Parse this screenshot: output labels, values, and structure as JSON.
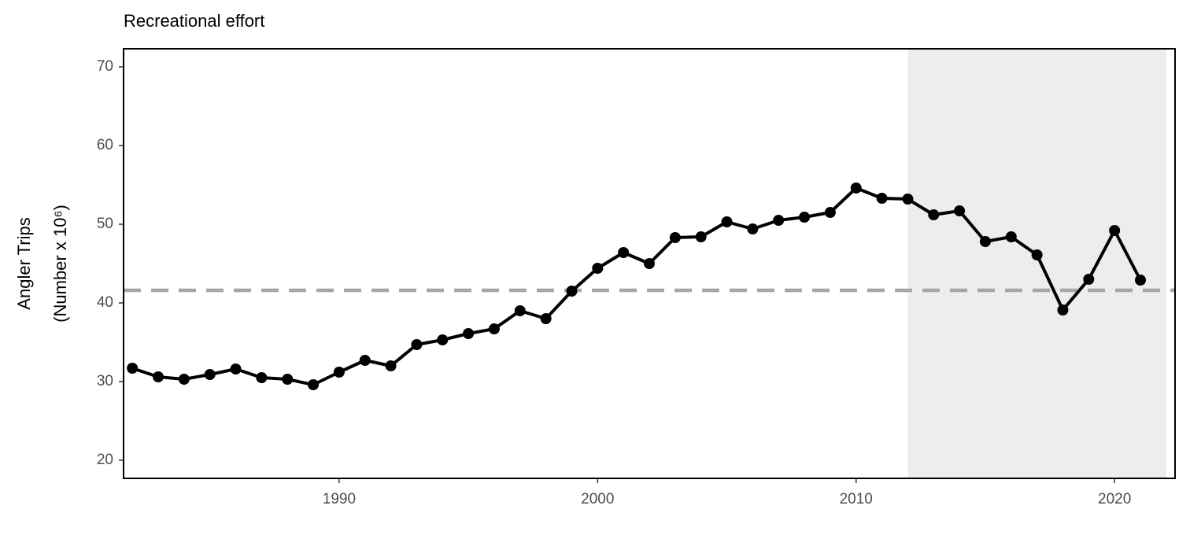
{
  "chart_data": {
    "type": "line",
    "title": "Recreational effort",
    "ylabel": [
      "Angler Trips",
      "(Number x 10⁶)"
    ],
    "x": [
      1982,
      1983,
      1984,
      1985,
      1986,
      1987,
      1988,
      1989,
      1990,
      1991,
      1992,
      1993,
      1994,
      1995,
      1996,
      1997,
      1998,
      1999,
      2000,
      2001,
      2002,
      2003,
      2004,
      2005,
      2006,
      2007,
      2008,
      2009,
      2010,
      2011,
      2012,
      2013,
      2014,
      2015,
      2016,
      2017,
      2018,
      2019,
      2020,
      2021
    ],
    "series": [
      {
        "color": "#000000",
        "values": [
          31.7,
          30.6,
          30.3,
          30.9,
          31.6,
          30.5,
          30.3,
          29.6,
          31.2,
          32.7,
          32.0,
          34.7,
          35.3,
          36.1,
          36.7,
          39.0,
          38.0,
          41.5,
          44.4,
          46.4,
          45.0,
          48.3,
          48.4,
          50.3,
          49.4,
          50.5,
          50.9,
          51.5,
          54.6,
          53.3,
          53.2,
          51.2,
          51.7,
          47.8,
          48.4,
          46.1,
          39.1,
          43.0,
          49.2,
          42.9
        ]
      }
    ],
    "xlim": [
      1981.66,
      2022.34
    ],
    "ylim": [
      17.7,
      72.3
    ],
    "xticks": [
      1990,
      2000,
      2010,
      2020
    ],
    "yticks": [
      20,
      30,
      40,
      50,
      60,
      70
    ],
    "shaded_range": [
      2012,
      2022
    ],
    "shade_color": "#ededed",
    "hline": 41.6,
    "hline_color": "#a6a6a6",
    "grid": false
  }
}
